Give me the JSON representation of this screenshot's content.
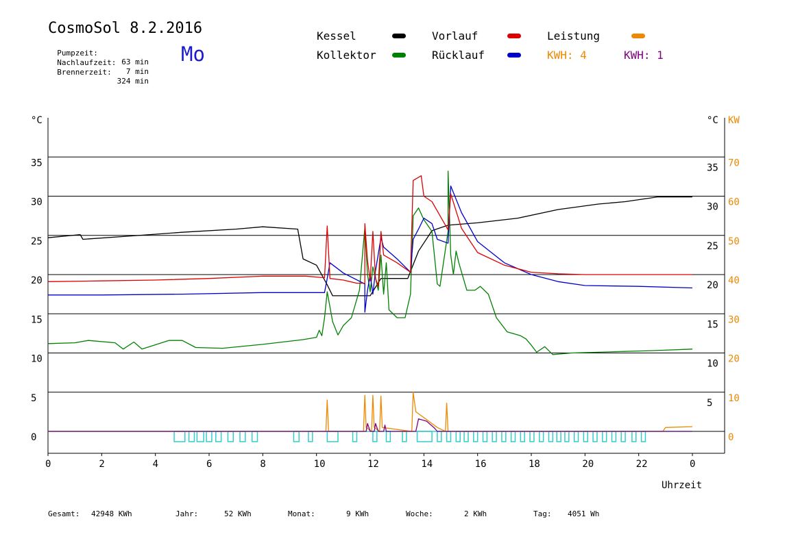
{
  "header": {
    "title": "CosmoSol 8.2.2016",
    "day": "Mo",
    "stats": [
      {
        "label": "Pumpzeit:",
        "value": "63 min"
      },
      {
        "label": "Nachlaufzeit:",
        "value": "7 min"
      },
      {
        "label": "Brennerzeit:",
        "value": "324 min"
      }
    ]
  },
  "legend": {
    "kessel": "Kessel",
    "kollektor": "Kollektor",
    "vorlauf": "Vorlauf",
    "ruecklauf": "Rücklauf",
    "leistung": "Leistung",
    "kwh_orange": "KWH: 4",
    "kwh_purple": "KWH: 1"
  },
  "footer": {
    "gesamt_label": "Gesamt:",
    "gesamt_value": "42948 KWh",
    "jahr_label": "Jahr:",
    "jahr_value": "52 KWh",
    "monat_label": "Monat:",
    "monat_value": "9 KWh",
    "woche_label": "Woche:",
    "woche_value": "2 KWh",
    "tag_label": "Tag:",
    "tag_value": "4051 Wh"
  },
  "chart_data": {
    "type": "line",
    "xlabel": "Uhrzeit",
    "x_ticks": [
      "0",
      "2",
      "4",
      "6",
      "8",
      "10",
      "12",
      "14",
      "16",
      "18",
      "20",
      "22",
      "0"
    ],
    "left_unit": "°C",
    "right_unit_temp": "°C",
    "right_unit_power": "KW",
    "left_ticks": [
      0,
      5,
      10,
      15,
      20,
      25,
      30,
      35
    ],
    "right_ticks_temp": [
      5,
      10,
      15,
      20,
      25,
      30,
      35
    ],
    "right_ticks_power": [
      0,
      10,
      20,
      30,
      40,
      50,
      60,
      70
    ],
    "ylim": [
      -2.8,
      40
    ],
    "grid": "horizontal",
    "colors": {
      "kessel": "#000000",
      "kollektor": "#008000",
      "vorlauf": "#dd0000",
      "ruecklauf": "#0000cc",
      "leistung": "#ee8800",
      "kwh_purple": "#800080",
      "pump": "#33cccc"
    },
    "series": [
      {
        "name": "Kessel",
        "key": "kessel",
        "points": [
          [
            0,
            24.7
          ],
          [
            1.2,
            25.1
          ],
          [
            1.3,
            24.5
          ],
          [
            3,
            24.9
          ],
          [
            5,
            25.4
          ],
          [
            7,
            25.8
          ],
          [
            8,
            26.1
          ],
          [
            9.3,
            25.8
          ],
          [
            9.5,
            22
          ],
          [
            10,
            21.2
          ],
          [
            10.4,
            18.7
          ],
          [
            10.6,
            17.3
          ],
          [
            12,
            17.3
          ],
          [
            12.4,
            19.5
          ],
          [
            13.4,
            19.5
          ],
          [
            13.8,
            23
          ],
          [
            14.3,
            25.6
          ],
          [
            14.9,
            26.3
          ],
          [
            16,
            26.6
          ],
          [
            17.5,
            27.2
          ],
          [
            19,
            28.3
          ],
          [
            20.5,
            29
          ],
          [
            21.5,
            29.3
          ],
          [
            22.7,
            29.9
          ],
          [
            24,
            29.9
          ]
        ]
      },
      {
        "name": "Kollektor",
        "key": "kollektor",
        "points": [
          [
            0,
            11.2
          ],
          [
            1,
            11.3
          ],
          [
            1.5,
            11.6
          ],
          [
            2.5,
            11.3
          ],
          [
            2.8,
            10.5
          ],
          [
            3.2,
            11.4
          ],
          [
            3.5,
            10.5
          ],
          [
            4.5,
            11.6
          ],
          [
            5,
            11.6
          ],
          [
            5.5,
            10.7
          ],
          [
            6.5,
            10.6
          ],
          [
            8,
            11.1
          ],
          [
            9.5,
            11.7
          ],
          [
            10,
            12
          ],
          [
            10.1,
            12.9
          ],
          [
            10.2,
            12.2
          ],
          [
            10.3,
            14.5
          ],
          [
            10.4,
            17.8
          ],
          [
            10.6,
            14
          ],
          [
            10.8,
            12.3
          ],
          [
            11,
            13.5
          ],
          [
            11.3,
            14.5
          ],
          [
            11.6,
            18
          ],
          [
            11.8,
            26
          ],
          [
            11.9,
            20
          ],
          [
            12,
            17.8
          ],
          [
            12.1,
            21
          ],
          [
            12.3,
            18
          ],
          [
            12.4,
            22.5
          ],
          [
            12.5,
            17.5
          ],
          [
            12.6,
            21.5
          ],
          [
            12.7,
            15.5
          ],
          [
            13,
            14.5
          ],
          [
            13.3,
            14.5
          ],
          [
            13.5,
            17.5
          ],
          [
            13.6,
            27.5
          ],
          [
            13.8,
            28.5
          ],
          [
            14,
            27
          ],
          [
            14.3,
            25.5
          ],
          [
            14.5,
            18.8
          ],
          [
            14.6,
            18.5
          ],
          [
            14.9,
            25.5
          ],
          [
            14.9,
            33.2
          ],
          [
            15,
            22.5
          ],
          [
            15.1,
            20
          ],
          [
            15.2,
            23
          ],
          [
            15.3,
            21.5
          ],
          [
            15.6,
            18
          ],
          [
            15.9,
            18
          ],
          [
            16.1,
            18.5
          ],
          [
            16.4,
            17.5
          ],
          [
            16.7,
            14.5
          ],
          [
            17.1,
            12.7
          ],
          [
            17.6,
            12.2
          ],
          [
            17.8,
            11.8
          ],
          [
            18,
            11
          ],
          [
            18.2,
            10.1
          ],
          [
            18.5,
            10.8
          ],
          [
            18.8,
            9.8
          ],
          [
            19.5,
            10
          ],
          [
            20.5,
            10.1
          ],
          [
            21.5,
            10.2
          ],
          [
            22.5,
            10.3
          ],
          [
            24,
            10.5
          ]
        ]
      },
      {
        "name": "Vorlauf",
        "key": "vorlauf",
        "points": [
          [
            0,
            19.1
          ],
          [
            2,
            19.2
          ],
          [
            4,
            19.3
          ],
          [
            6,
            19.5
          ],
          [
            8,
            19.8
          ],
          [
            9.6,
            19.8
          ],
          [
            10.3,
            19.6
          ],
          [
            10.4,
            26.2
          ],
          [
            10.5,
            19.5
          ],
          [
            11,
            19.3
          ],
          [
            11.5,
            18.9
          ],
          [
            11.8,
            18.9
          ],
          [
            11.8,
            26.5
          ],
          [
            11.9,
            21.8
          ],
          [
            12,
            19.2
          ],
          [
            12.1,
            25.5
          ],
          [
            12.2,
            19.5
          ],
          [
            12.3,
            18.5
          ],
          [
            12.4,
            25.5
          ],
          [
            12.5,
            22.5
          ],
          [
            13,
            21.5
          ],
          [
            13.5,
            20.3
          ],
          [
            13.6,
            32
          ],
          [
            13.9,
            32.6
          ],
          [
            14,
            30
          ],
          [
            14.3,
            29.3
          ],
          [
            14.9,
            25.7
          ],
          [
            15,
            30.3
          ],
          [
            15.4,
            25.9
          ],
          [
            16,
            22.8
          ],
          [
            17,
            21.2
          ],
          [
            18,
            20.3
          ],
          [
            19,
            20.1
          ],
          [
            20,
            20
          ],
          [
            24,
            20
          ]
        ]
      },
      {
        "name": "Rücklauf",
        "key": "ruecklauf",
        "points": [
          [
            0,
            17.4
          ],
          [
            2,
            17.4
          ],
          [
            5,
            17.5
          ],
          [
            8,
            17.7
          ],
          [
            9.5,
            17.7
          ],
          [
            10.3,
            17.7
          ],
          [
            10.4,
            19.5
          ],
          [
            10.5,
            21.5
          ],
          [
            11,
            20.2
          ],
          [
            11.8,
            18.8
          ],
          [
            11.8,
            15.2
          ],
          [
            11.9,
            18
          ],
          [
            12,
            20
          ],
          [
            12.1,
            17.5
          ],
          [
            12.2,
            20.5
          ],
          [
            12.4,
            24.7
          ],
          [
            12.5,
            23.5
          ],
          [
            13,
            22
          ],
          [
            13.5,
            20.3
          ],
          [
            13.6,
            24.5
          ],
          [
            13.8,
            25.8
          ],
          [
            14,
            27.2
          ],
          [
            14.3,
            26.5
          ],
          [
            14.5,
            24.5
          ],
          [
            14.9,
            24
          ],
          [
            15,
            31.3
          ],
          [
            15.4,
            27.9
          ],
          [
            16,
            24.2
          ],
          [
            17,
            21.5
          ],
          [
            18,
            20
          ],
          [
            19,
            19.1
          ],
          [
            20,
            18.6
          ],
          [
            22,
            18.5
          ],
          [
            24,
            18.3
          ]
        ]
      },
      {
        "name": "Leistung",
        "key": "leistung",
        "points": [
          [
            0,
            0
          ],
          [
            10.35,
            0
          ],
          [
            10.4,
            4
          ],
          [
            10.45,
            0
          ],
          [
            11.75,
            0
          ],
          [
            11.8,
            4.6
          ],
          [
            11.85,
            0.5
          ],
          [
            12.05,
            0
          ],
          [
            12.1,
            4.6
          ],
          [
            12.15,
            0.5
          ],
          [
            12.35,
            0
          ],
          [
            12.4,
            4.5
          ],
          [
            12.45,
            0.5
          ],
          [
            13.55,
            0
          ],
          [
            13.6,
            5
          ],
          [
            13.7,
            2.5
          ],
          [
            14.1,
            1.5
          ],
          [
            14.5,
            0.5
          ],
          [
            14.8,
            0
          ],
          [
            14.85,
            3.6
          ],
          [
            14.9,
            0
          ],
          [
            22.9,
            0
          ],
          [
            23,
            0.5
          ],
          [
            24,
            0.6
          ]
        ]
      },
      {
        "name": "KWH: 1",
        "key": "kwh_purple",
        "points": [
          [
            0,
            0
          ],
          [
            11.85,
            0
          ],
          [
            11.9,
            1
          ],
          [
            12,
            0
          ],
          [
            12.15,
            0
          ],
          [
            12.2,
            1
          ],
          [
            12.3,
            0
          ],
          [
            12.5,
            0
          ],
          [
            12.55,
            0.8
          ],
          [
            12.6,
            0
          ],
          [
            13.7,
            0
          ],
          [
            13.8,
            1.6
          ],
          [
            14.1,
            1.3
          ],
          [
            14.4,
            0.4
          ],
          [
            14.5,
            0
          ],
          [
            24,
            0
          ]
        ]
      }
    ],
    "pump_pulses": [
      [
        4.7,
        5.1
      ],
      [
        5.25,
        5.45
      ],
      [
        5.55,
        5.8
      ],
      [
        5.9,
        6.1
      ],
      [
        6.25,
        6.45
      ],
      [
        6.7,
        6.9
      ],
      [
        7.15,
        7.35
      ],
      [
        7.6,
        7.8
      ],
      [
        9.15,
        9.35
      ],
      [
        9.7,
        9.85
      ],
      [
        10.4,
        10.8
      ],
      [
        11.35,
        11.5
      ],
      [
        12.1,
        12.25
      ],
      [
        12.6,
        12.75
      ],
      [
        13.2,
        13.35
      ],
      [
        13.75,
        14.3
      ],
      [
        14.5,
        14.65
      ],
      [
        14.85,
        15.0
      ],
      [
        15.2,
        15.35
      ],
      [
        15.5,
        15.65
      ],
      [
        15.85,
        16.0
      ],
      [
        16.2,
        16.35
      ],
      [
        16.55,
        16.7
      ],
      [
        16.9,
        17.05
      ],
      [
        17.25,
        17.4
      ],
      [
        17.6,
        17.75
      ],
      [
        17.95,
        18.1
      ],
      [
        18.3,
        18.45
      ],
      [
        18.65,
        18.8
      ],
      [
        18.95,
        19.1
      ],
      [
        19.25,
        19.4
      ],
      [
        19.6,
        19.75
      ],
      [
        19.95,
        20.1
      ],
      [
        20.3,
        20.45
      ],
      [
        20.65,
        20.8
      ],
      [
        21.0,
        21.15
      ],
      [
        21.35,
        21.5
      ],
      [
        21.75,
        21.9
      ],
      [
        22.1,
        22.25
      ]
    ]
  }
}
